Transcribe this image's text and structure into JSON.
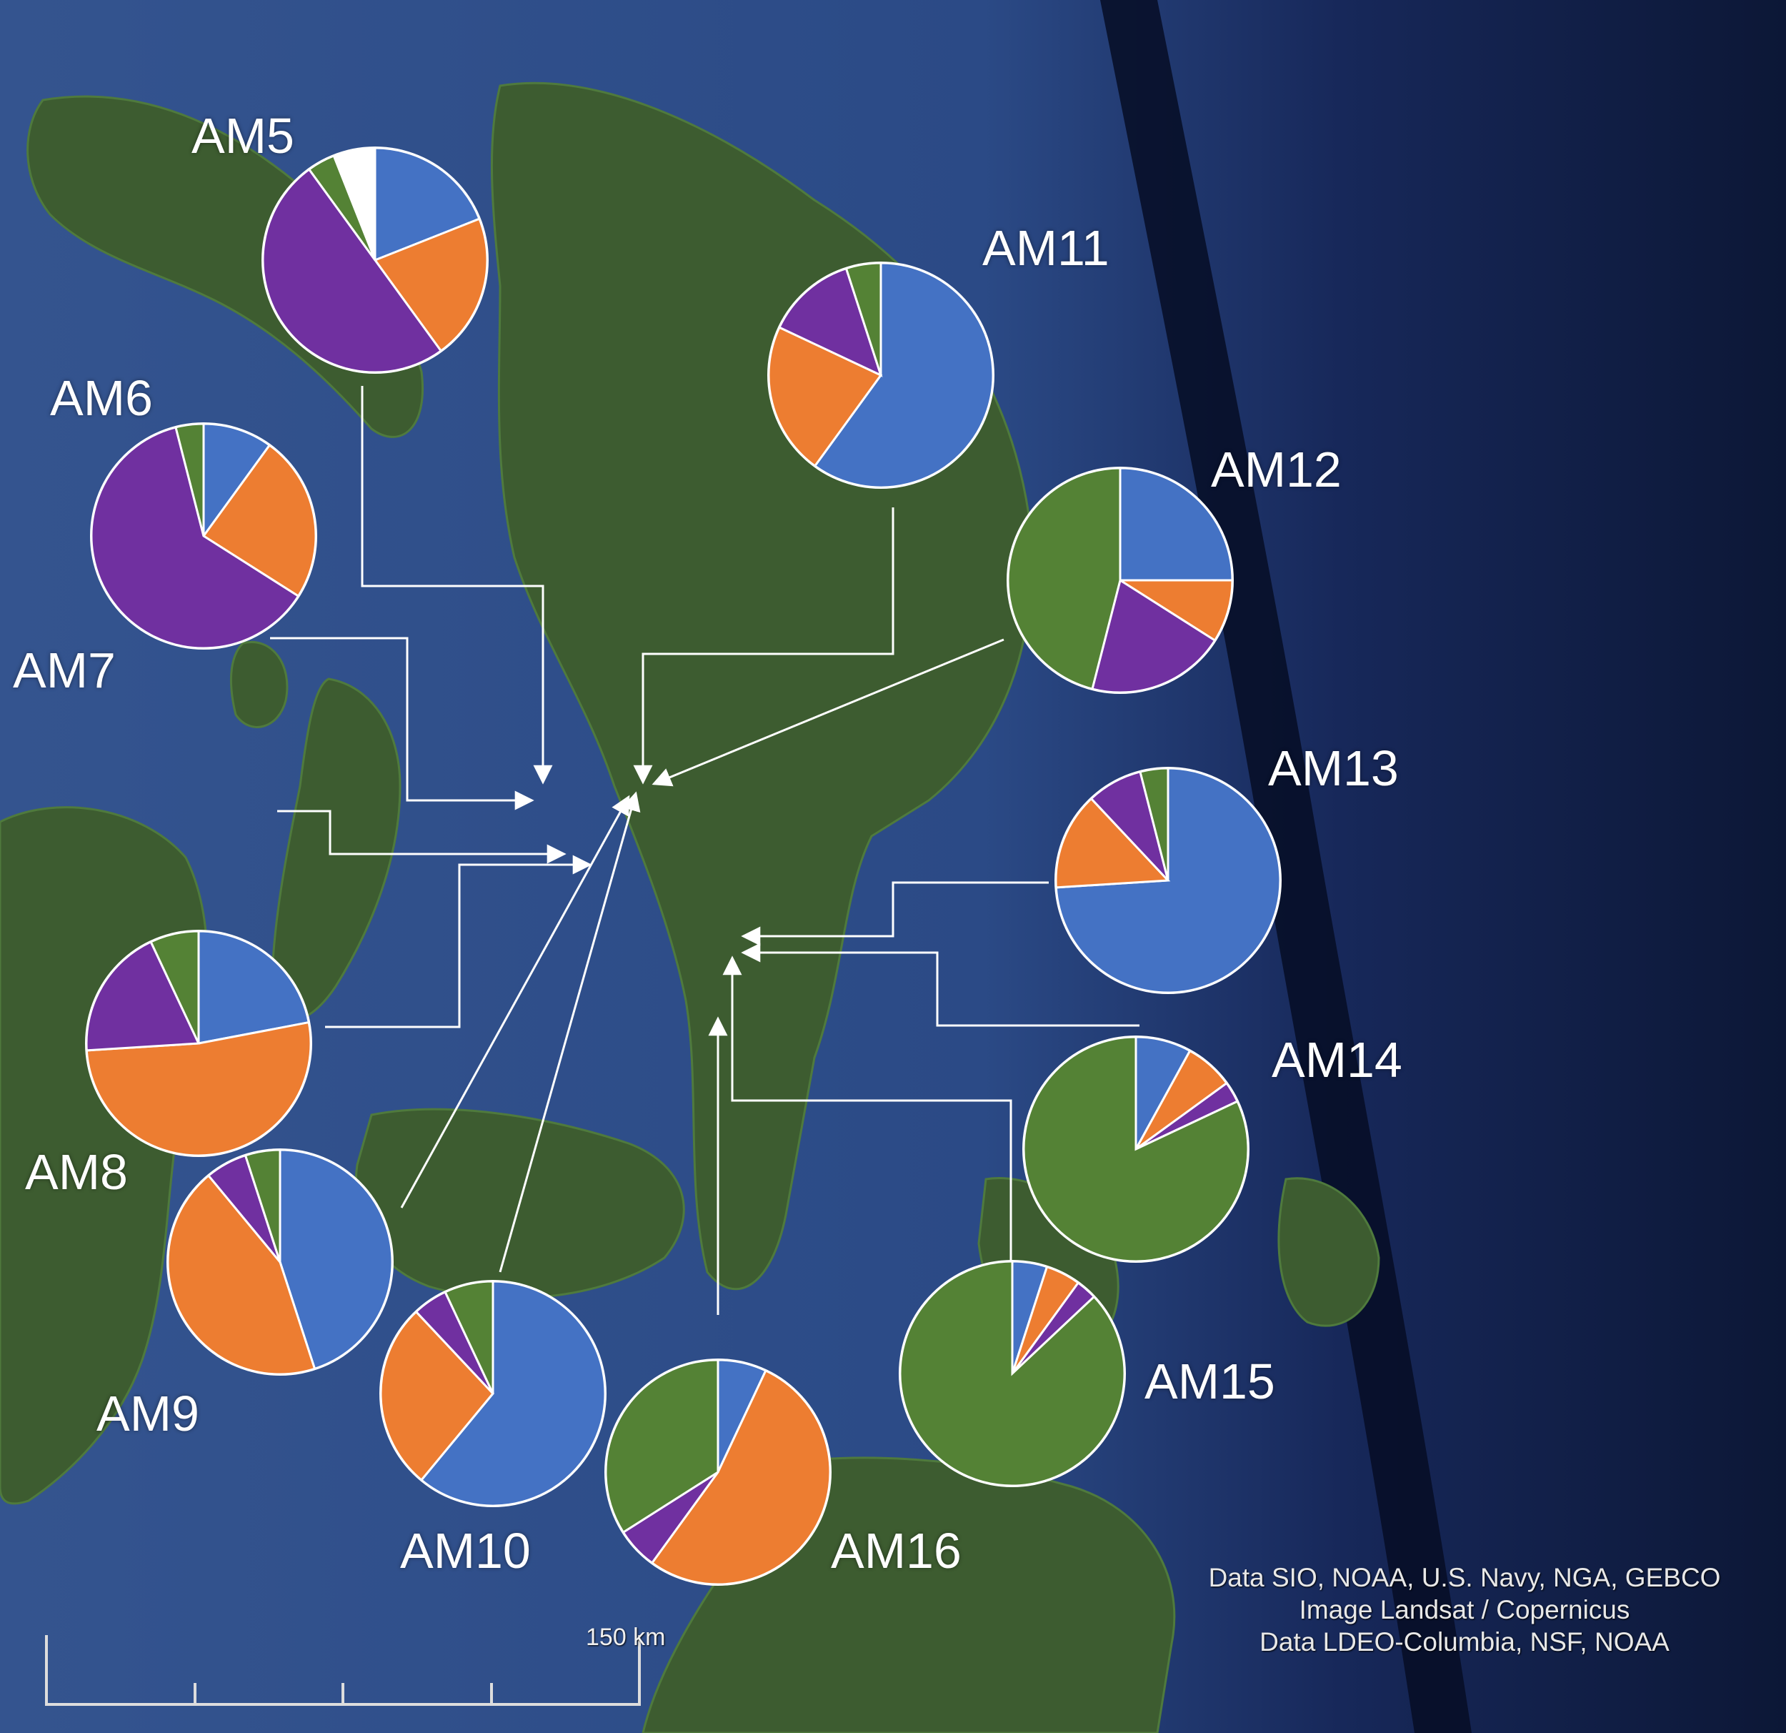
{
  "sites": [
    {
      "id": "AM5",
      "label": "AM5",
      "fractions": [
        0.19,
        0.21,
        0.5,
        0.04
      ]
    },
    {
      "id": "AM6",
      "label": "AM6",
      "fractions": [
        0.1,
        0.24,
        0.62,
        0.04
      ]
    },
    {
      "id": "AM7",
      "label": "AM7",
      "fractions": []
    },
    {
      "id": "AM8",
      "label": "AM8",
      "fractions": [
        0.22,
        0.52,
        0.19,
        0.07
      ]
    },
    {
      "id": "AM9",
      "label": "AM9",
      "fractions": [
        0.45,
        0.44,
        0.06,
        0.05
      ]
    },
    {
      "id": "AM10",
      "label": "AM10",
      "fractions": [
        0.61,
        0.27,
        0.05,
        0.07
      ]
    },
    {
      "id": "AM11",
      "label": "AM11",
      "fractions": [
        0.6,
        0.22,
        0.13,
        0.05
      ]
    },
    {
      "id": "AM12",
      "label": "AM12",
      "fractions": [
        0.25,
        0.09,
        0.2,
        0.46
      ]
    },
    {
      "id": "AM13",
      "label": "AM13",
      "fractions": [
        0.74,
        0.14,
        0.08,
        0.04
      ]
    },
    {
      "id": "AM14",
      "label": "AM14",
      "fractions": [
        0.08,
        0.07,
        0.03,
        0.82
      ]
    },
    {
      "id": "AM15",
      "label": "AM15",
      "fractions": [
        0.05,
        0.05,
        0.03,
        0.87
      ]
    },
    {
      "id": "AM16",
      "label": "AM16",
      "fractions": [
        0.07,
        0.53,
        0.06,
        0.34
      ]
    }
  ],
  "palette": {
    "blue": "#4472c4",
    "orange": "#ed7d31",
    "purple": "#7030a0",
    "green": "#548235"
  },
  "credits": [
    "Data SIO, NOAA, U.S. Navy, NGA, GEBCO",
    "Image Landsat / Copernicus",
    "Data LDEO-Columbia, NSF, NOAA"
  ],
  "scale": {
    "label": "150 km"
  },
  "map": {
    "ocean_color": "#2c4a8c",
    "deep_ocean_color": "#0b1533",
    "land_color": "#3b5a2e"
  }
}
